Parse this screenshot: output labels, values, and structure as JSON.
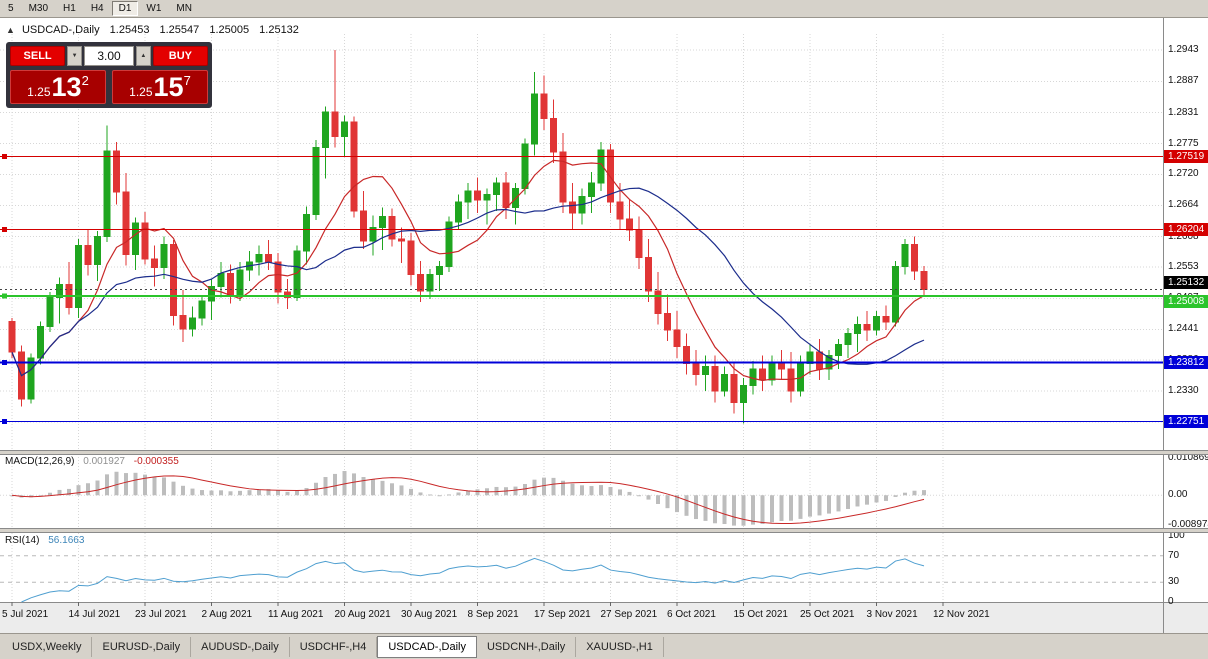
{
  "toolbar": {
    "timeframes": [
      "5",
      "M30",
      "H1",
      "H4",
      "D1",
      "W1",
      "MN"
    ],
    "active": "D1"
  },
  "window": {
    "symbol_title": "USDCAD-,Daily",
    "ohlc": {
      "open": "1.25453",
      "high": "1.25547",
      "low": "1.25005",
      "close": "1.25132"
    }
  },
  "one_click": {
    "sell_label": "SELL",
    "buy_label": "BUY",
    "volume": "3.00",
    "bid_small": "1.25",
    "bid_big": "13",
    "bid_sup": "2",
    "ask_small": "1.25",
    "ask_big": "15",
    "ask_sup": "7"
  },
  "price_axis_ticks": [
    "1.2943",
    "1.2887",
    "1.2831",
    "1.2775",
    "1.2720",
    "1.2664",
    "1.2608",
    "1.2553",
    "1.2497",
    "1.2441",
    "1.2386",
    "1.2330",
    "1.2275"
  ],
  "lines": [
    {
      "price": 1.27519,
      "label": "1.27519",
      "color": "#d40000",
      "text": "#ffffff",
      "width": 1
    },
    {
      "price": 1.26204,
      "label": "1.26204",
      "color": "#d40000",
      "text": "#ffffff",
      "width": 1
    },
    {
      "price": 1.25008,
      "label": "1.25008",
      "color": "#2bc42b",
      "text": "#ffffff",
      "width": 2
    },
    {
      "price": 1.23812,
      "label": "1.23812",
      "color": "#0000d8",
      "text": "#ffffff",
      "width": 2
    },
    {
      "price": 1.22751,
      "label": "1.22751",
      "color": "#0000d8",
      "text": "#ffffff",
      "width": 1
    }
  ],
  "current_price": {
    "price": 1.25132,
    "label": "1.25132"
  },
  "macd": {
    "name": "MACD(12,26,9)",
    "value": "0.001927",
    "signal": "-0.000355",
    "axis": [
      "0.010869",
      "0.00",
      "-0.008974"
    ],
    "max": 0.010869,
    "min": -0.008974
  },
  "rsi": {
    "name": "RSI(14)",
    "value": "56.1663",
    "axis": [
      "100",
      "70",
      "30",
      "0"
    ],
    "levels": [
      70,
      30
    ]
  },
  "tabs": [
    "USDX,Weekly",
    "EURUSD-,Daily",
    "AUDUSD-,Daily",
    "USDCHF-,H4",
    "USDCAD-,Daily",
    "USDCNH-,Daily",
    "XAUUSD-,H1"
  ],
  "active_tab": "USDCAD-,Daily",
  "colors": {
    "bull": "#1fa51f",
    "bear": "#e03535",
    "ma_fast": "#c82828",
    "ma_slow": "#1c2d8c",
    "macd_hist": "#bdbdbd",
    "macd_signal": "#c82828",
    "rsi_line": "#4f9fd0",
    "grid": "#d7d7d7",
    "axis_strip": "#ececec"
  },
  "chart_data": {
    "type": "candlestick",
    "symbol": "USDCAD-",
    "timeframe": "Daily",
    "dates": [
      "5 Jul 2021",
      "14 Jul 2021",
      "23 Jul 2021",
      "2 Aug 2021",
      "11 Aug 2021",
      "20 Aug 2021",
      "30 Aug 2021",
      "8 Sep 2021",
      "17 Sep 2021",
      "27 Sep 2021",
      "6 Oct 2021",
      "15 Oct 2021",
      "25 Oct 2021",
      "3 Nov 2021",
      "12 Nov 2021"
    ],
    "price_range": [
      1.2235,
      1.2965
    ],
    "candles": [
      [
        1.2455,
        1.2462,
        1.239,
        1.24
      ],
      [
        1.24,
        1.2412,
        1.2302,
        1.2316
      ],
      [
        1.2316,
        1.2398,
        1.2308,
        1.239
      ],
      [
        1.239,
        1.2455,
        1.2378,
        1.2446
      ],
      [
        1.2446,
        1.2508,
        1.2436,
        1.2498
      ],
      [
        1.2498,
        1.2534,
        1.2452,
        1.2522
      ],
      [
        1.2522,
        1.2562,
        1.2468,
        1.248
      ],
      [
        1.248,
        1.2604,
        1.2462,
        1.2592
      ],
      [
        1.2592,
        1.2622,
        1.2538,
        1.2558
      ],
      [
        1.2558,
        1.2618,
        1.2528,
        1.2608
      ],
      [
        1.2608,
        1.2808,
        1.2598,
        1.2762
      ],
      [
        1.2762,
        1.2778,
        1.2666,
        1.2688
      ],
      [
        1.2688,
        1.2722,
        1.2556,
        1.2576
      ],
      [
        1.2576,
        1.2642,
        1.2548,
        1.2632
      ],
      [
        1.2632,
        1.2652,
        1.2558,
        1.2568
      ],
      [
        1.2568,
        1.2592,
        1.2518,
        1.2552
      ],
      [
        1.2552,
        1.2608,
        1.2532,
        1.2594
      ],
      [
        1.2594,
        1.2602,
        1.2448,
        1.2466
      ],
      [
        1.2466,
        1.2512,
        1.2418,
        1.2442
      ],
      [
        1.2442,
        1.2482,
        1.2428,
        1.2462
      ],
      [
        1.2462,
        1.2502,
        1.2448,
        1.2492
      ],
      [
        1.2492,
        1.2532,
        1.2458,
        1.2518
      ],
      [
        1.2518,
        1.2562,
        1.2498,
        1.2542
      ],
      [
        1.2542,
        1.2558,
        1.2488,
        1.2502
      ],
      [
        1.2502,
        1.2562,
        1.2492,
        1.2548
      ],
      [
        1.2548,
        1.2582,
        1.2528,
        1.2562
      ],
      [
        1.2562,
        1.2592,
        1.2538,
        1.2576
      ],
      [
        1.2576,
        1.2602,
        1.2548,
        1.2562
      ],
      [
        1.2562,
        1.2578,
        1.2488,
        1.2508
      ],
      [
        1.2508,
        1.2532,
        1.2478,
        1.2498
      ],
      [
        1.2498,
        1.2592,
        1.2492,
        1.2582
      ],
      [
        1.2582,
        1.2662,
        1.2558,
        1.2648
      ],
      [
        1.2648,
        1.2782,
        1.2638,
        1.2768
      ],
      [
        1.2768,
        1.2842,
        1.2712,
        1.2832
      ],
      [
        1.2832,
        1.2943,
        1.2768,
        1.2788
      ],
      [
        1.2788,
        1.2826,
        1.2752,
        1.2814
      ],
      [
        1.2814,
        1.2824,
        1.2642,
        1.2654
      ],
      [
        1.2654,
        1.269,
        1.2586,
        1.26
      ],
      [
        1.26,
        1.2646,
        1.2574,
        1.2624
      ],
      [
        1.2624,
        1.266,
        1.2584,
        1.2644
      ],
      [
        1.2644,
        1.2658,
        1.259,
        1.2604
      ],
      [
        1.2604,
        1.2624,
        1.256,
        1.26
      ],
      [
        1.26,
        1.2614,
        1.252,
        1.254
      ],
      [
        1.254,
        1.2564,
        1.249,
        1.251
      ],
      [
        1.251,
        1.255,
        1.2496,
        1.254
      ],
      [
        1.254,
        1.2564,
        1.251,
        1.2554
      ],
      [
        1.2554,
        1.2644,
        1.2544,
        1.2634
      ],
      [
        1.2634,
        1.2684,
        1.262,
        1.267
      ],
      [
        1.267,
        1.2704,
        1.264,
        1.269
      ],
      [
        1.269,
        1.2714,
        1.265,
        1.2674
      ],
      [
        1.2674,
        1.2694,
        1.263,
        1.2684
      ],
      [
        1.2684,
        1.2714,
        1.2654,
        1.2704
      ],
      [
        1.2704,
        1.2724,
        1.264,
        1.266
      ],
      [
        1.266,
        1.2704,
        1.263,
        1.2694
      ],
      [
        1.2694,
        1.2784,
        1.2684,
        1.2774
      ],
      [
        1.2774,
        1.2904,
        1.2754,
        1.2864
      ],
      [
        1.2864,
        1.2898,
        1.28,
        1.282
      ],
      [
        1.282,
        1.2854,
        1.274,
        1.276
      ],
      [
        1.276,
        1.2794,
        1.265,
        1.267
      ],
      [
        1.267,
        1.2704,
        1.262,
        1.265
      ],
      [
        1.265,
        1.2694,
        1.263,
        1.268
      ],
      [
        1.268,
        1.2724,
        1.265,
        1.2704
      ],
      [
        1.2704,
        1.2778,
        1.269,
        1.2764
      ],
      [
        1.2764,
        1.2774,
        1.265,
        1.267
      ],
      [
        1.267,
        1.2704,
        1.262,
        1.264
      ],
      [
        1.264,
        1.2674,
        1.26,
        1.262
      ],
      [
        1.262,
        1.2644,
        1.255,
        1.257
      ],
      [
        1.257,
        1.2604,
        1.249,
        1.251
      ],
      [
        1.251,
        1.2544,
        1.245,
        1.247
      ],
      [
        1.247,
        1.2504,
        1.242,
        1.244
      ],
      [
        1.244,
        1.2474,
        1.239,
        1.241
      ],
      [
        1.241,
        1.2434,
        1.236,
        1.238
      ],
      [
        1.238,
        1.2404,
        1.234,
        1.236
      ],
      [
        1.236,
        1.2394,
        1.233,
        1.2374
      ],
      [
        1.2374,
        1.2394,
        1.231,
        1.233
      ],
      [
        1.233,
        1.2374,
        1.232,
        1.236
      ],
      [
        1.236,
        1.238,
        1.229,
        1.231
      ],
      [
        1.231,
        1.2354,
        1.2272,
        1.234
      ],
      [
        1.234,
        1.2384,
        1.2324,
        1.237
      ],
      [
        1.237,
        1.2394,
        1.233,
        1.235
      ],
      [
        1.235,
        1.2394,
        1.234,
        1.238
      ],
      [
        1.238,
        1.2404,
        1.235,
        1.237
      ],
      [
        1.237,
        1.24,
        1.231,
        1.233
      ],
      [
        1.233,
        1.2394,
        1.232,
        1.238
      ],
      [
        1.238,
        1.2414,
        1.236,
        1.24
      ],
      [
        1.24,
        1.2424,
        1.235,
        1.237
      ],
      [
        1.237,
        1.2404,
        1.235,
        1.2394
      ],
      [
        1.2394,
        1.2424,
        1.237,
        1.2414
      ],
      [
        1.2414,
        1.2444,
        1.239,
        1.2434
      ],
      [
        1.2434,
        1.2464,
        1.24,
        1.245
      ],
      [
        1.245,
        1.2474,
        1.242,
        1.244
      ],
      [
        1.244,
        1.2474,
        1.243,
        1.2464
      ],
      [
        1.2464,
        1.2484,
        1.244,
        1.2454
      ],
      [
        1.2454,
        1.2564,
        1.2446,
        1.2554
      ],
      [
        1.2554,
        1.2604,
        1.254,
        1.2594
      ],
      [
        1.2594,
        1.2608,
        1.253,
        1.2546
      ],
      [
        1.25453,
        1.25547,
        1.25005,
        1.25132
      ]
    ]
  }
}
